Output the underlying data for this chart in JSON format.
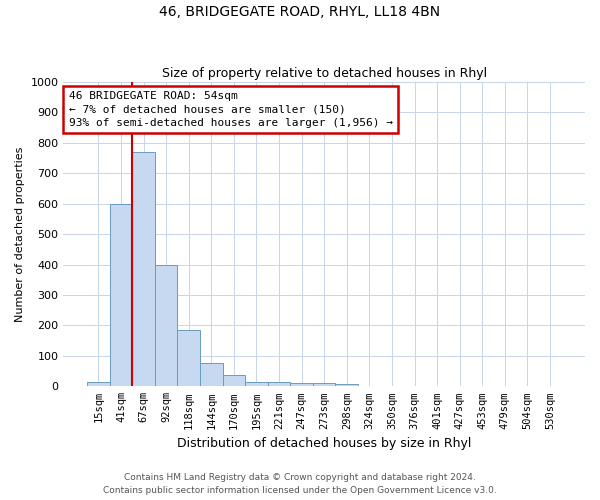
{
  "title": "46, BRIDGEGATE ROAD, RHYL, LL18 4BN",
  "subtitle": "Size of property relative to detached houses in Rhyl",
  "xlabel": "Distribution of detached houses by size in Rhyl",
  "ylabel": "Number of detached properties",
  "categories": [
    "15sqm",
    "41sqm",
    "67sqm",
    "92sqm",
    "118sqm",
    "144sqm",
    "170sqm",
    "195sqm",
    "221sqm",
    "247sqm",
    "273sqm",
    "298sqm",
    "324sqm",
    "350sqm",
    "376sqm",
    "401sqm",
    "427sqm",
    "453sqm",
    "479sqm",
    "504sqm",
    "530sqm"
  ],
  "values": [
    15,
    600,
    770,
    400,
    185,
    75,
    38,
    15,
    13,
    11,
    10,
    8,
    0,
    0,
    0,
    0,
    0,
    0,
    0,
    0,
    0
  ],
  "bar_color": "#c6d9f0",
  "bar_edge_color": "#6a9cbf",
  "vline_color": "#cc0000",
  "annotation_text": "46 BRIDGEGATE ROAD: 54sqm\n← 7% of detached houses are smaller (150)\n93% of semi-detached houses are larger (1,956) →",
  "annotation_box_color": "#ffffff",
  "annotation_box_edge": "#cc0000",
  "ylim": [
    0,
    1000
  ],
  "yticks": [
    0,
    100,
    200,
    300,
    400,
    500,
    600,
    700,
    800,
    900,
    1000
  ],
  "footer1": "Contains HM Land Registry data © Crown copyright and database right 2024.",
  "footer2": "Contains public sector information licensed under the Open Government Licence v3.0.",
  "background_color": "#ffffff",
  "grid_color": "#c8d4e8",
  "title_fontsize": 10,
  "subtitle_fontsize": 9,
  "xlabel_fontsize": 9,
  "ylabel_fontsize": 8,
  "tick_fontsize": 8,
  "xtick_fontsize": 7.5,
  "footer_fontsize": 6.5,
  "annot_fontsize": 8
}
